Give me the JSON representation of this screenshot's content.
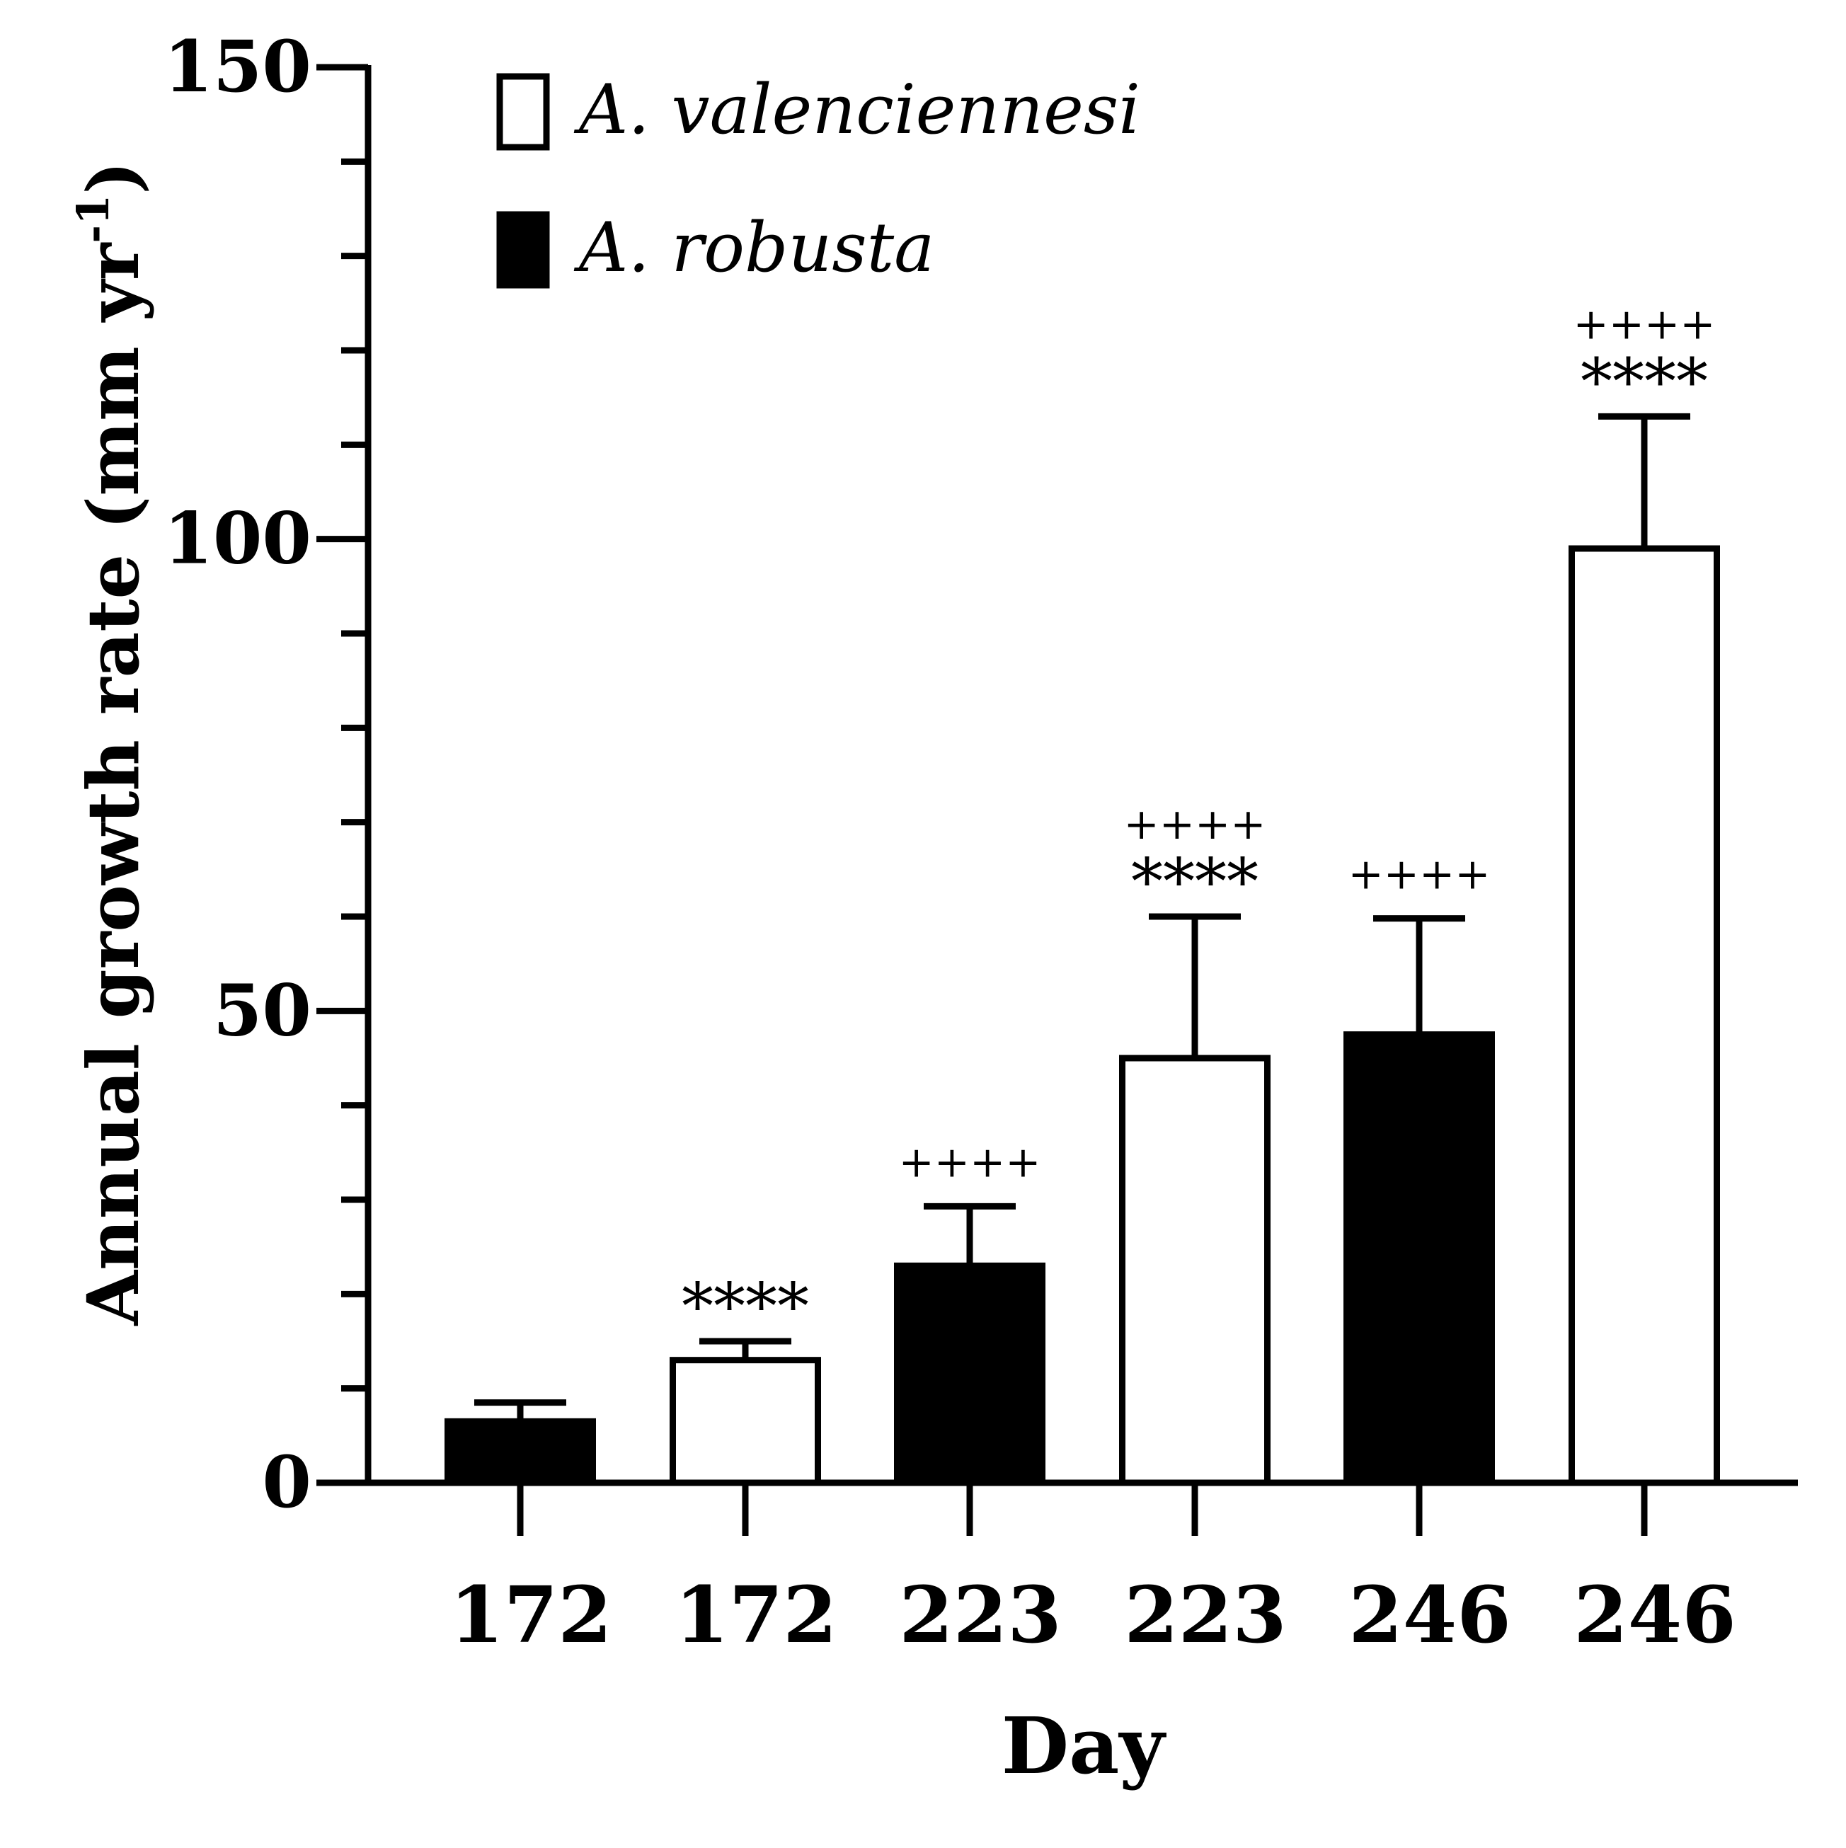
{
  "chart_data": {
    "type": "bar",
    "title": "",
    "xlabel": "Day",
    "ylabel": "Annual growth rate (mm yr",
    "ylabel_superscript": "-1",
    "ylabel_close": ")",
    "ylim": [
      0,
      150
    ],
    "yticks": [
      0,
      50,
      100,
      150
    ],
    "categories": [
      "172",
      "172",
      "223",
      "223",
      "246",
      "246"
    ],
    "bars": [
      {
        "category": "172",
        "series": "A. robusta",
        "value": 6.5,
        "error": 2.0,
        "annotations": []
      },
      {
        "category": "172",
        "series": "A. valenciennesi",
        "value": 13.0,
        "error": 2.0,
        "annotations": [
          "****"
        ]
      },
      {
        "category": "223",
        "series": "A. robusta",
        "value": 23.0,
        "error": 6.3,
        "annotations": [
          "++++"
        ]
      },
      {
        "category": "223",
        "series": "A. valenciennesi",
        "value": 45.0,
        "error": 15.0,
        "annotations": [
          "++++",
          "****"
        ]
      },
      {
        "category": "246",
        "series": "A. robusta",
        "value": 47.5,
        "error": 12.3,
        "annotations": [
          "++++"
        ]
      },
      {
        "category": "246",
        "series": "A. valenciennesi",
        "value": 99.0,
        "error": 14.0,
        "annotations": [
          "++++",
          "****"
        ]
      }
    ],
    "legend": {
      "position": "top-left",
      "entries": [
        {
          "name": "A. valenciennesi",
          "fill": "#ffffff"
        },
        {
          "name": "A. robusta",
          "fill": "#000000"
        }
      ]
    },
    "colors": {
      "white_bar": "#ffffff",
      "black_bar": "#000000",
      "stroke": "#000000"
    }
  }
}
